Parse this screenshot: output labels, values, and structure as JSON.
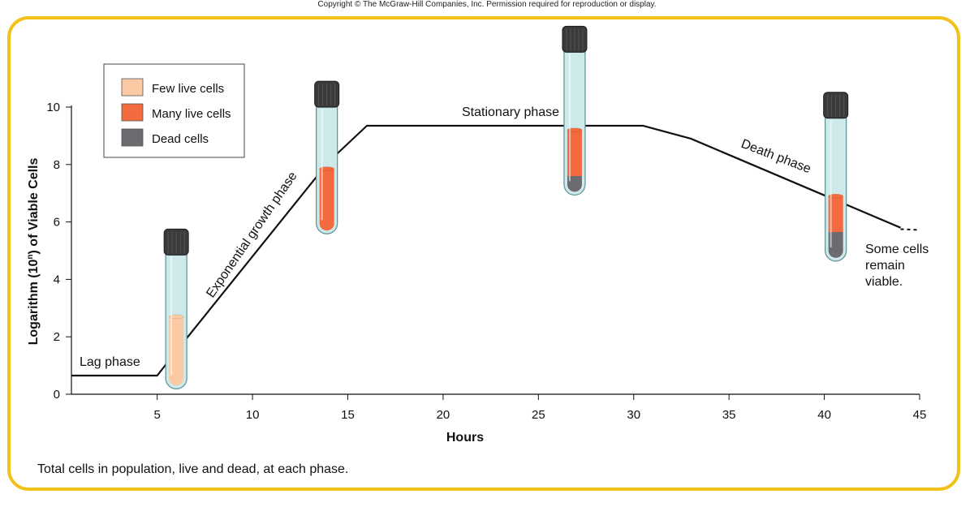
{
  "copyright": "Copyright © The McGraw-Hill Companies, Inc. Permission required for reproduction or display.",
  "caption": "Total cells in population, live and dead, at each phase.",
  "colors": {
    "few_live": "#fcc9a5",
    "many_live": "#f26a3d",
    "dead": "#6c6c70",
    "tube_glass": "#cde9ea",
    "cap": "#3a3a3c",
    "frame": "#f2c21a"
  },
  "legend": {
    "items": [
      {
        "label": "Few live cells",
        "color": "#fcc9a5"
      },
      {
        "label": "Many live cells",
        "color": "#f26a3d"
      },
      {
        "label": "Dead cells",
        "color": "#6c6c70"
      }
    ]
  },
  "chart_data": {
    "type": "line",
    "xlabel": "Hours",
    "ylabel_prefix": "Logarithm (10",
    "ylabel_sup": "n",
    "ylabel_suffix": ") of Viable Cells",
    "xlim": [
      0.5,
      45
    ],
    "ylim": [
      0,
      10
    ],
    "x_ticks": [
      5,
      10,
      15,
      20,
      25,
      30,
      35,
      40,
      45
    ],
    "y_ticks": [
      0,
      2,
      4,
      6,
      8,
      10
    ],
    "curve": {
      "x": [
        0.5,
        5,
        6,
        14,
        16,
        30.5,
        33,
        44
      ],
      "y": [
        0.65,
        0.65,
        1.5,
        8.1,
        9.35,
        9.35,
        8.9,
        5.8
      ]
    },
    "tail": {
      "x": [
        44,
        45
      ],
      "y": [
        5.75,
        5.72
      ]
    },
    "phases": [
      {
        "label": "Lag phase"
      },
      {
        "label": "Exponential growth phase"
      },
      {
        "label": "Stationary phase"
      },
      {
        "label": "Death phase"
      }
    ],
    "annotation": [
      "Some cells",
      "remain",
      "viable."
    ],
    "tubes": [
      {
        "x": 6.0,
        "fill": [
          {
            "type": "few_live",
            "from": 0.3,
            "to": 2.7
          }
        ]
      },
      {
        "x": 13.9,
        "fill": [
          {
            "type": "many_live",
            "from": 5.7,
            "to": 7.85
          }
        ]
      },
      {
        "x": 26.9,
        "fill": [
          {
            "type": "dead",
            "from": 7.05,
            "to": 7.6
          },
          {
            "type": "many_live",
            "from": 7.6,
            "to": 9.2
          }
        ]
      },
      {
        "x": 40.6,
        "fill": [
          {
            "type": "dead",
            "from": 4.75,
            "to": 5.65
          },
          {
            "type": "many_live",
            "from": 5.65,
            "to": 6.9
          }
        ]
      }
    ]
  }
}
